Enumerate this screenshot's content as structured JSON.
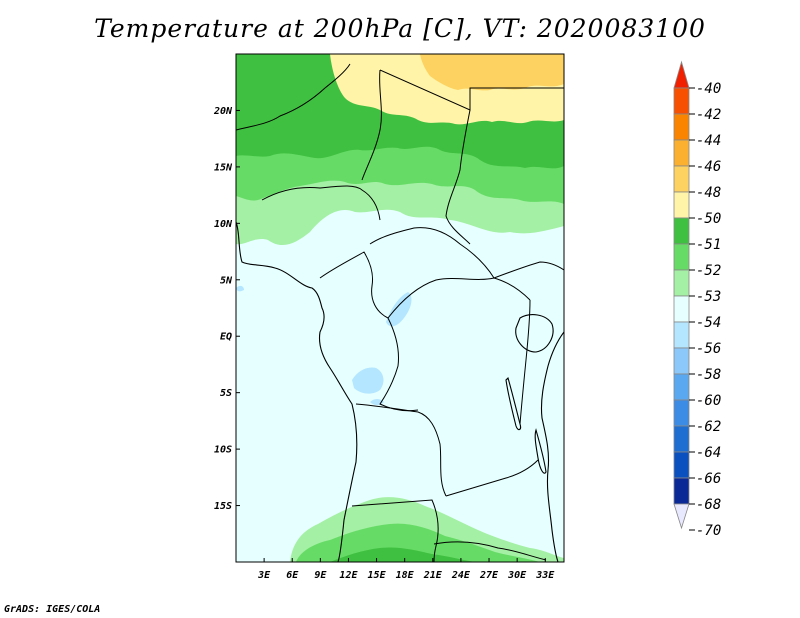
{
  "title": "Temperature at 200hPa [C], VT: 2020083100",
  "credit": "GrADS: IGES/COLA",
  "map": {
    "lat_range": [
      -20,
      25
    ],
    "lon_range": [
      0,
      35
    ],
    "lat_ticks": [
      {
        "value": 20,
        "label": "20N"
      },
      {
        "value": 15,
        "label": "15N"
      },
      {
        "value": 10,
        "label": "10N"
      },
      {
        "value": 5,
        "label": "5N"
      },
      {
        "value": 0,
        "label": "EQ"
      },
      {
        "value": -5,
        "label": "5S"
      },
      {
        "value": -10,
        "label": "10S"
      },
      {
        "value": -15,
        "label": "15S"
      }
    ],
    "lon_ticks": [
      {
        "value": 3,
        "label": "3E"
      },
      {
        "value": 6,
        "label": "6E"
      },
      {
        "value": 9,
        "label": "9E"
      },
      {
        "value": 12,
        "label": "12E"
      },
      {
        "value": 15,
        "label": "15E"
      },
      {
        "value": 18,
        "label": "18E"
      },
      {
        "value": 21,
        "label": "21E"
      },
      {
        "value": 24,
        "label": "24E"
      },
      {
        "value": 27,
        "label": "27E"
      },
      {
        "value": 30,
        "label": "30E"
      },
      {
        "value": 33,
        "label": "33E"
      }
    ]
  },
  "colorbar": {
    "levels": [
      "-40",
      "-42",
      "-44",
      "-46",
      "-48",
      "-50",
      "-51",
      "-52",
      "-53",
      "-54",
      "-56",
      "-58",
      "-60",
      "-62",
      "-64",
      "-66",
      "-68",
      "-70"
    ],
    "colors": [
      "#f02000",
      "#f65000",
      "#fa8400",
      "#fcb030",
      "#fdd260",
      "#fff4a8",
      "#40c040",
      "#66dc66",
      "#a4f0a4",
      "#e6ffff",
      "#b4e6ff",
      "#8cc8fa",
      "#5aa8f0",
      "#3c8ce6",
      "#1e6ed2",
      "#0a50be",
      "#0a2896",
      "#00006e"
    ]
  }
}
